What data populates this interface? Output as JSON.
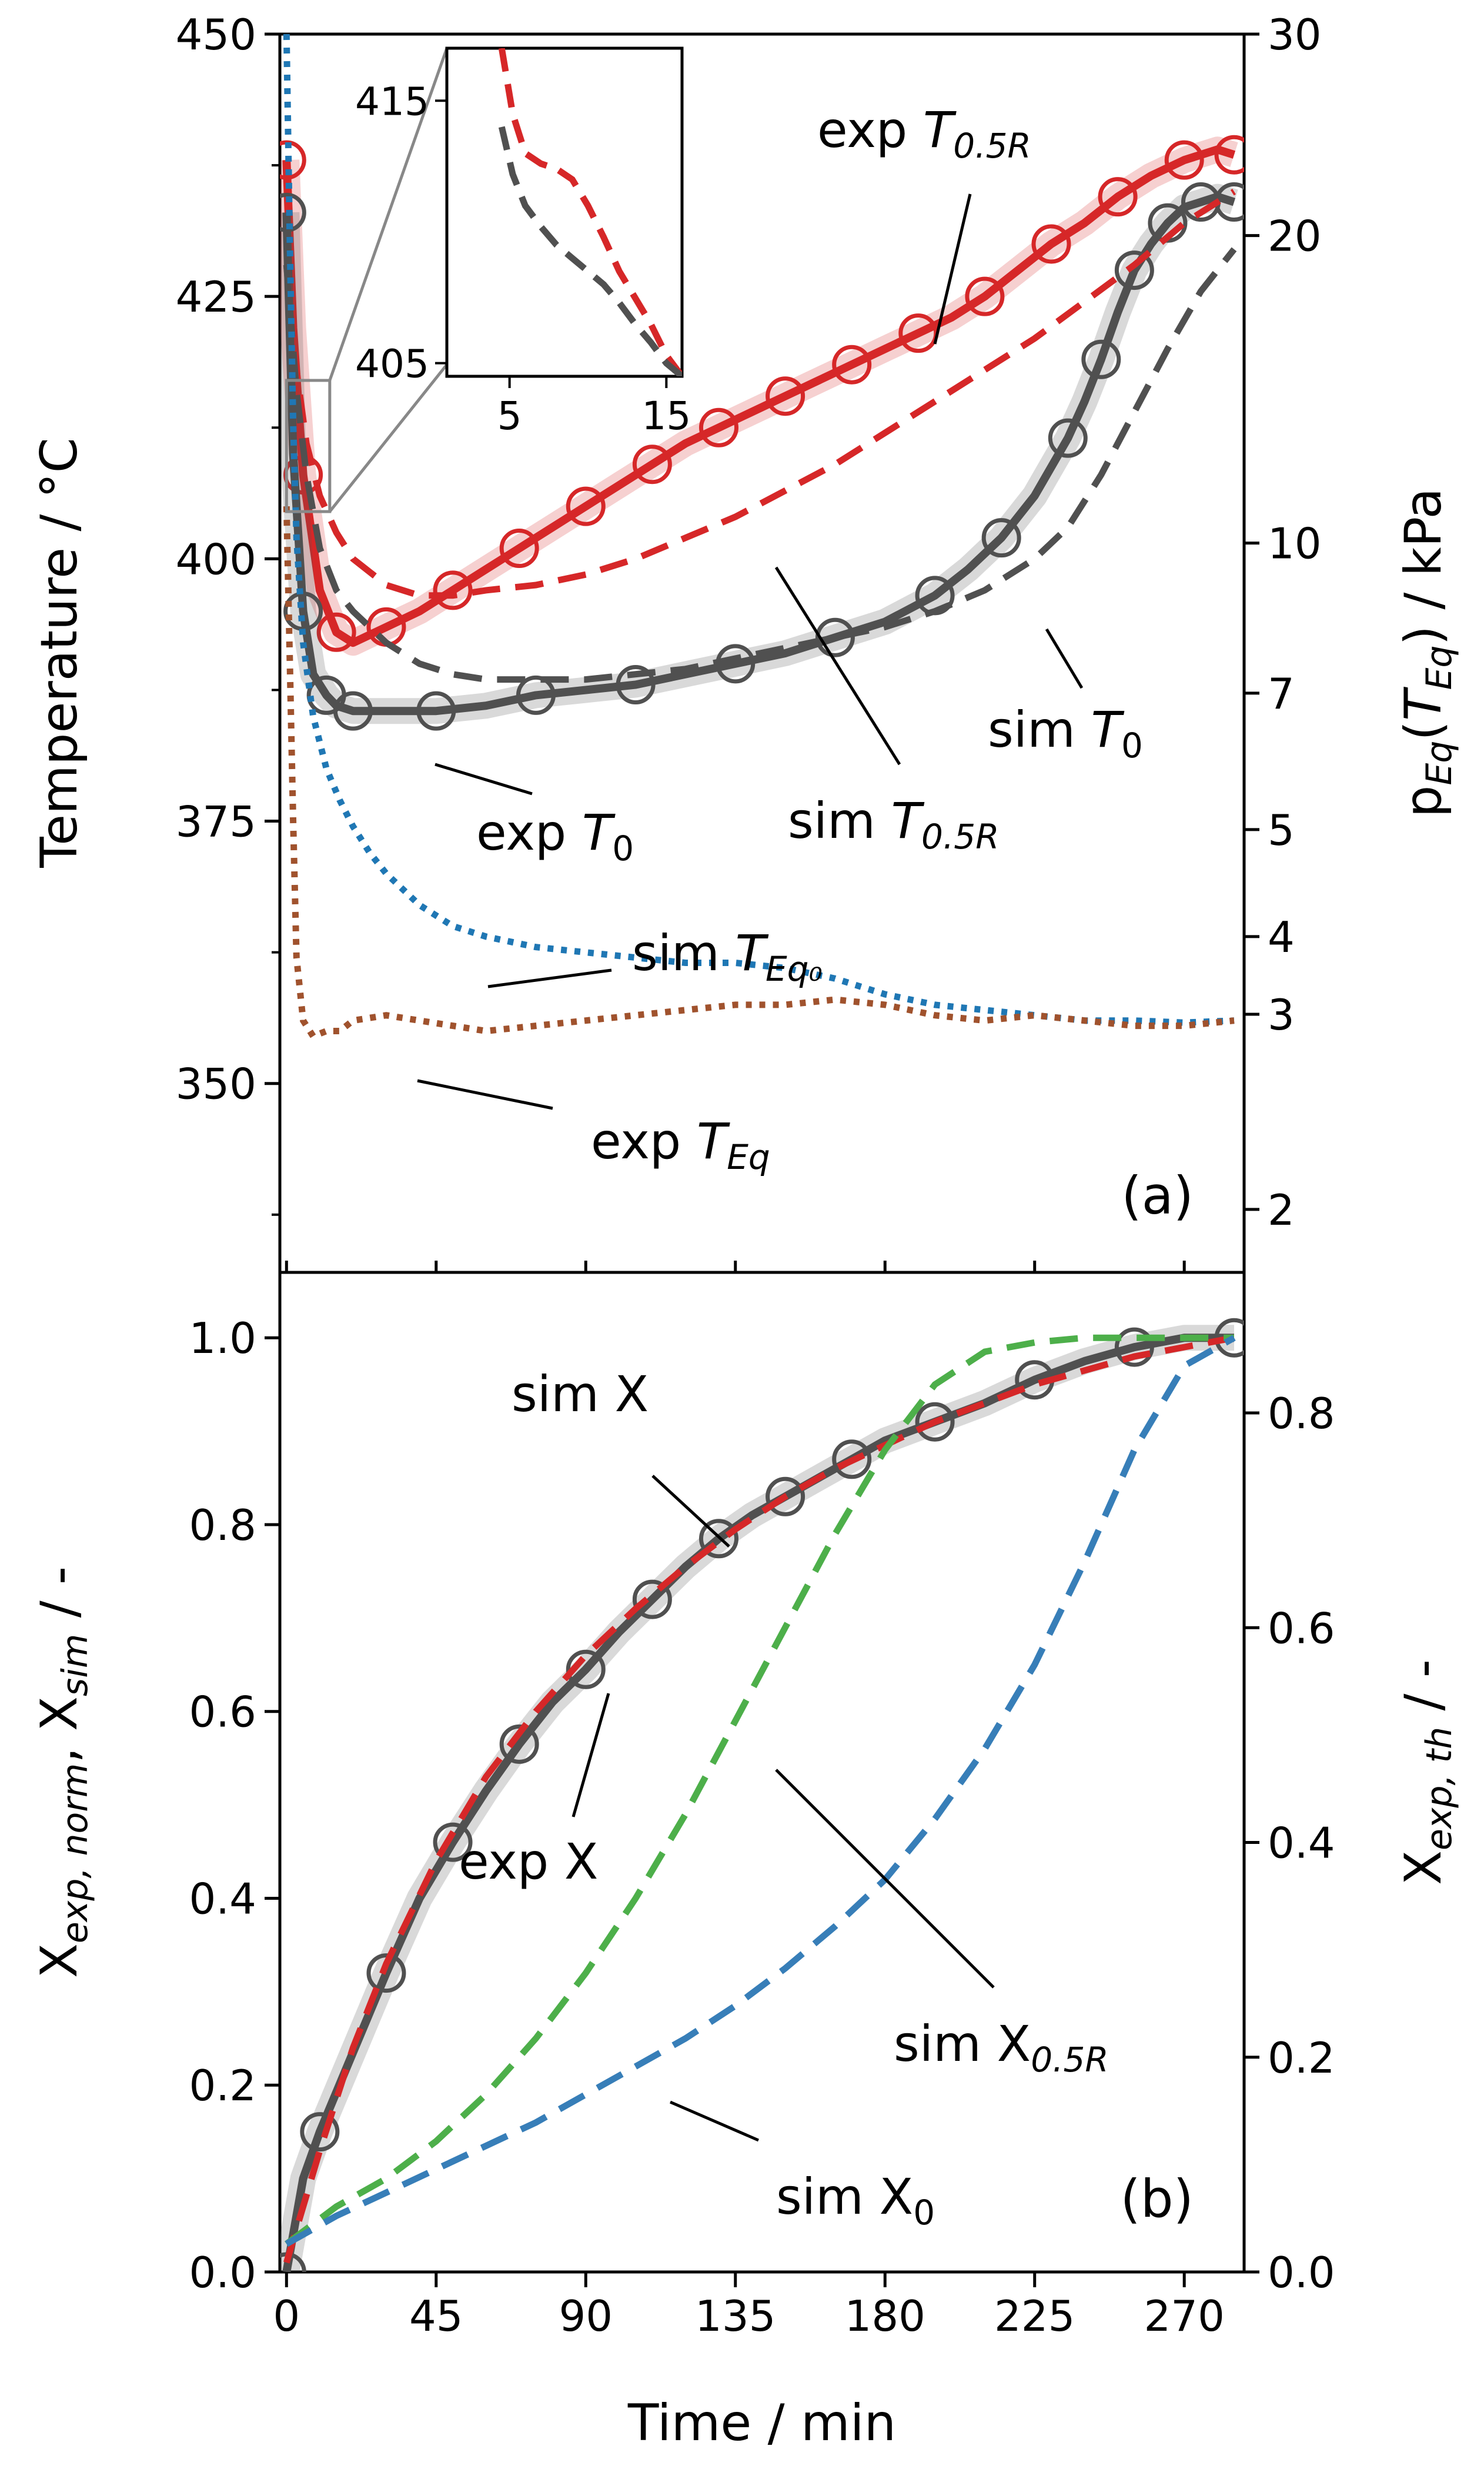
{
  "figure": {
    "xlabel": "Time / min",
    "x_ticks": [
      0,
      45,
      90,
      135,
      180,
      225,
      270
    ],
    "xlim": [
      -2,
      288
    ]
  },
  "chart_data": [
    {
      "panel": "(a)",
      "type": "line",
      "ylabel_left": "Temperature / °C",
      "ylabel_right": "p_Eq(T_Eq) / kPa",
      "ylim": [
        332,
        450
      ],
      "y_ticks": [
        350,
        375,
        400,
        425,
        450
      ],
      "right_axis": {
        "ticks": [
          2,
          3,
          4,
          5,
          7,
          10,
          20,
          30
        ],
        "tick_positions_temperature": [
          338,
          356.6,
          364,
          374.2,
          387.2,
          401.5,
          430.8,
          450
        ]
      },
      "series": [
        {
          "key": "exp_T05R",
          "color": "#d62728",
          "style": "solid-markers",
          "x": [
            0,
            2,
            5,
            10,
            15,
            20,
            30,
            40,
            50,
            60,
            70,
            80,
            90,
            100,
            110,
            120,
            130,
            140,
            150,
            160,
            170,
            180,
            190,
            200,
            210,
            220,
            230,
            240,
            250,
            260,
            270,
            280,
            285
          ],
          "y": [
            438,
            422,
            408,
            397,
            393,
            392,
            393.5,
            395,
            397,
            399,
            401,
            403,
            405,
            407,
            409,
            411,
            412.5,
            414,
            415.5,
            417,
            418.5,
            420,
            421.5,
            423,
            425,
            427.5,
            430,
            432,
            434.5,
            436.5,
            438,
            439,
            438.5
          ]
        },
        {
          "key": "exp_T0",
          "color": "#505050",
          "style": "solid-markers",
          "x": [
            0,
            2,
            5,
            8,
            12,
            15,
            20,
            30,
            45,
            60,
            75,
            90,
            105,
            120,
            135,
            150,
            165,
            180,
            195,
            205,
            215,
            225,
            235,
            240,
            245,
            250,
            255,
            260,
            265,
            270,
            275,
            280,
            285
          ],
          "y": [
            433,
            410,
            395,
            389,
            387,
            386,
            385.5,
            385.5,
            385.5,
            386,
            387,
            387.5,
            388,
            389,
            390,
            391,
            392.5,
            394,
            396.5,
            399,
            402,
            406,
            411.5,
            415,
            419,
            423.5,
            427.5,
            430,
            432,
            433.5,
            434,
            434.5,
            434
          ]
        },
        {
          "key": "sim_T05R",
          "color": "#d62728",
          "style": "dashed",
          "x": [
            0,
            3,
            6,
            10,
            15,
            20,
            30,
            40,
            50,
            60,
            75,
            90,
            105,
            120,
            135,
            150,
            165,
            180,
            195,
            210,
            225,
            240,
            255,
            270,
            280,
            285
          ],
          "y": [
            428,
            418,
            411,
            406,
            402.5,
            400,
            397.5,
            396.5,
            396.5,
            397,
            397.5,
            398.5,
            400,
            402,
            404,
            406.5,
            409,
            412,
            415,
            418,
            421,
            424.5,
            428,
            432,
            434,
            435
          ]
        },
        {
          "key": "sim_T0",
          "color": "#505050",
          "style": "dashed",
          "x": [
            0,
            3,
            6,
            10,
            15,
            20,
            30,
            40,
            50,
            60,
            75,
            90,
            105,
            120,
            135,
            150,
            165,
            180,
            195,
            210,
            225,
            235,
            245,
            255,
            265,
            275,
            285
          ],
          "y": [
            428,
            416,
            408,
            401,
            397,
            395,
            392,
            390,
            389,
            388.5,
            388.5,
            388.5,
            389,
            389.5,
            390.5,
            391.5,
            392.5,
            393.5,
            395,
            397,
            400,
            403,
            408,
            414,
            420,
            425.5,
            429.5
          ]
        },
        {
          "key": "sim_TEq0",
          "color": "#1f77b4",
          "style": "dotted",
          "x": [
            0,
            1,
            2,
            3,
            5,
            8,
            12,
            16,
            20,
            25,
            30,
            40,
            50,
            60,
            75,
            90,
            105,
            120,
            135,
            150,
            165,
            180,
            195,
            210,
            225,
            240,
            255,
            270,
            285
          ],
          "y": [
            450,
            430,
            413,
            402,
            392,
            385,
            380,
            377,
            374.5,
            372,
            370,
            367,
            365,
            364,
            363,
            362.5,
            362,
            361.5,
            361.5,
            361,
            360,
            358.5,
            357.5,
            357,
            356.5,
            356,
            356,
            355.8,
            356
          ]
        },
        {
          "key": "exp_TEq",
          "color": "#a0522d",
          "style": "dotted",
          "x": [
            0,
            1,
            2,
            3,
            5,
            8,
            12,
            16,
            20,
            30,
            40,
            50,
            60,
            75,
            90,
            105,
            120,
            135,
            150,
            165,
            180,
            195,
            210,
            225,
            240,
            255,
            270,
            285
          ],
          "y": [
            405,
            390,
            375,
            362,
            356,
            354.5,
            355,
            355,
            356,
            356.5,
            356,
            355.5,
            355,
            355.5,
            356,
            356.5,
            357,
            357.5,
            357.5,
            358,
            357.5,
            356.5,
            356,
            356.5,
            356,
            355.5,
            355.5,
            356
          ]
        }
      ],
      "annotations": [
        {
          "base": "exp ",
          "var": "T",
          "sub": "0.5R",
          "sub_italic": true
        },
        {
          "base": "exp ",
          "var": "T",
          "sub": "0",
          "sub_italic": false
        },
        {
          "base": "sim ",
          "var": "T",
          "sub": "0.5R",
          "sub_italic": true
        },
        {
          "base": "sim ",
          "var": "T",
          "sub": "0",
          "sub_italic": false
        },
        {
          "base": "sim ",
          "var": "T",
          "sub": "Eq₀",
          "sub_italic": true
        },
        {
          "base": "exp ",
          "var": "T",
          "sub": "Eq",
          "sub_italic": true
        }
      ],
      "inset": {
        "xlim": [
          1,
          16
        ],
        "ylim": [
          404.5,
          417
        ],
        "x_ticks": [
          5,
          15
        ],
        "y_ticks": [
          405,
          415
        ],
        "series": [
          {
            "color": "#d62728",
            "style": "dashed",
            "x": [
              4.5,
              5.2,
              6,
              7,
              8,
              9,
              10,
              11,
              12,
              13,
              14,
              15,
              16
            ],
            "y": [
              417,
              414.5,
              413,
              412.6,
              412.4,
              412,
              411,
              409.8,
              408.5,
              407.5,
              406.5,
              405.3,
              404.5
            ]
          },
          {
            "color": "#505050",
            "style": "dashed",
            "x": [
              4.5,
              5.2,
              6,
              7,
              8,
              9,
              10,
              11,
              12,
              13,
              14,
              15,
              16
            ],
            "y": [
              414,
              412.2,
              411,
              410.2,
              409.5,
              409,
              408.5,
              408,
              407.3,
              406.5,
              405.8,
              405,
              404.5
            ]
          }
        ]
      }
    },
    {
      "panel": "(b)",
      "type": "line",
      "ylabel_left": "X_exp,norm, X_sim / -",
      "ylabel_right": "X_exp,th / -",
      "ylim": [
        0,
        1.07
      ],
      "y_ticks": [
        0.0,
        0.2,
        0.4,
        0.6,
        0.8,
        1.0
      ],
      "right_axis": {
        "ticks": [
          0.0,
          0.2,
          0.4,
          0.6,
          0.8
        ],
        "scale": 0.87
      },
      "series": [
        {
          "key": "exp_X",
          "color": "#505050",
          "style": "solid-markers",
          "x": [
            0,
            5,
            10,
            20,
            30,
            40,
            50,
            60,
            70,
            80,
            90,
            100,
            110,
            120,
            130,
            140,
            150,
            160,
            170,
            180,
            195,
            210,
            225,
            240,
            255,
            270,
            285
          ],
          "y": [
            0,
            0.1,
            0.15,
            0.235,
            0.32,
            0.4,
            0.46,
            0.515,
            0.565,
            0.61,
            0.645,
            0.685,
            0.72,
            0.755,
            0.785,
            0.81,
            0.83,
            0.85,
            0.87,
            0.89,
            0.91,
            0.93,
            0.955,
            0.975,
            0.99,
            1.0,
            1.0
          ]
        },
        {
          "key": "sim_X",
          "color": "#d62728",
          "style": "dashed",
          "x": [
            0,
            5,
            10,
            20,
            30,
            45,
            60,
            75,
            90,
            105,
            120,
            135,
            150,
            165,
            180,
            195,
            210,
            225,
            240,
            255,
            270,
            285
          ],
          "y": [
            0.01,
            0.07,
            0.13,
            0.24,
            0.33,
            0.44,
            0.53,
            0.6,
            0.66,
            0.71,
            0.755,
            0.795,
            0.83,
            0.86,
            0.885,
            0.91,
            0.93,
            0.95,
            0.965,
            0.98,
            0.99,
            1.0
          ]
        },
        {
          "key": "sim_X05R",
          "color": "#4daf4a",
          "style": "dashed",
          "x": [
            0,
            15,
            30,
            45,
            60,
            75,
            90,
            105,
            120,
            135,
            150,
            165,
            180,
            195,
            210,
            225,
            240,
            255,
            270,
            285
          ],
          "y": [
            0.03,
            0.07,
            0.1,
            0.14,
            0.19,
            0.25,
            0.32,
            0.4,
            0.49,
            0.59,
            0.69,
            0.79,
            0.88,
            0.95,
            0.985,
            0.995,
            1.0,
            1.0,
            1.0,
            1.0
          ]
        },
        {
          "key": "sim_X0",
          "color": "#377eb8",
          "style": "dashed",
          "x": [
            0,
            15,
            30,
            45,
            60,
            75,
            90,
            105,
            120,
            135,
            150,
            165,
            180,
            195,
            210,
            225,
            240,
            255,
            270,
            285
          ],
          "y": [
            0.03,
            0.06,
            0.085,
            0.11,
            0.135,
            0.16,
            0.19,
            0.22,
            0.25,
            0.285,
            0.325,
            0.37,
            0.42,
            0.485,
            0.56,
            0.65,
            0.76,
            0.88,
            0.97,
            1.0
          ]
        }
      ],
      "annotations": [
        {
          "base": "sim X",
          "var": "",
          "sub": "",
          "sub_italic": false
        },
        {
          "base": "exp X",
          "var": "",
          "sub": "",
          "sub_italic": false
        },
        {
          "base": "sim X",
          "var": "",
          "sub": "0.5R",
          "sub_italic": true
        },
        {
          "base": "sim X",
          "var": "",
          "sub": "0",
          "sub_italic": false
        }
      ]
    }
  ]
}
